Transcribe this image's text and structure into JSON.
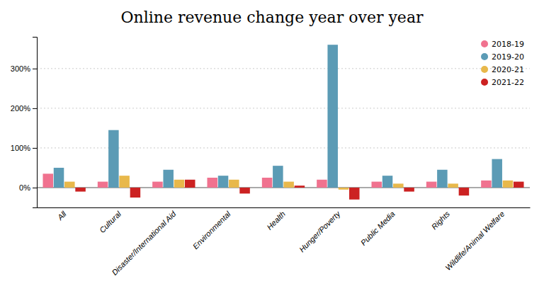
{
  "chart_data": {
    "type": "bar",
    "title": "Online revenue change year over year",
    "categories": [
      "All",
      "Cultural",
      "Disaster/International Aid",
      "Environmental",
      "Health",
      "Hunger/Poverty",
      "Public Media",
      "Rights",
      "Wildlife/Animal Welfare"
    ],
    "series": [
      {
        "name": "2018-19",
        "color": "#F0728F",
        "values": [
          35,
          15,
          15,
          25,
          25,
          20,
          15,
          15,
          18
        ]
      },
      {
        "name": "2019-20",
        "color": "#5B9BB5",
        "values": [
          50,
          145,
          45,
          30,
          55,
          360,
          30,
          45,
          72
        ]
      },
      {
        "name": "2020-21",
        "color": "#E8B84B",
        "values": [
          15,
          30,
          20,
          20,
          15,
          -5,
          10,
          10,
          18
        ]
      },
      {
        "name": "2021-22",
        "color": "#CC2222",
        "values": [
          -10,
          -25,
          20,
          -15,
          5,
          -30,
          -10,
          -20,
          15
        ]
      }
    ],
    "ylim": [
      -50,
      380
    ],
    "yticks": [
      {
        "value": 0,
        "label": "0%"
      },
      {
        "value": 100,
        "label": "100%"
      },
      {
        "value": 200,
        "label": "200%"
      },
      {
        "value": 300,
        "label": "300%"
      }
    ],
    "grid": true,
    "legend": "top-right"
  }
}
